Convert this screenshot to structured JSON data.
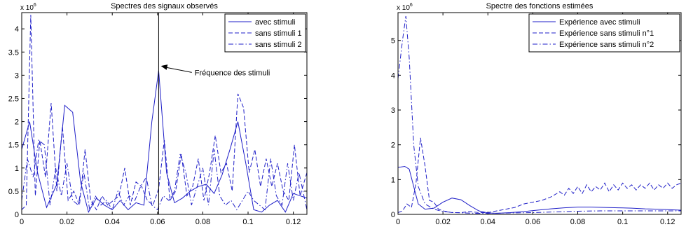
{
  "chart_data": [
    {
      "type": "line",
      "title": "Spectres des signaux observés",
      "xlabel": "",
      "ylabel": "",
      "y_multiplier_label": {
        "base": "x 10",
        "exponent": "6"
      },
      "xlim": [
        0,
        0.126
      ],
      "ylim": [
        0,
        4.35
      ],
      "x_ticks": [
        0,
        0.02,
        0.04,
        0.06,
        0.08,
        0.1,
        0.12
      ],
      "x_tick_labels": [
        "0",
        "0.02",
        "0.04",
        "0.06",
        "0.08",
        "0.1",
        "0.12"
      ],
      "y_ticks": [
        0,
        0.5,
        1,
        1.5,
        2,
        2.5,
        3,
        3.5,
        4
      ],
      "y_tick_labels": [
        "0",
        "0.5",
        "1",
        "1.5",
        "2",
        "2.5",
        "3",
        "3.5",
        "4"
      ],
      "grid": false,
      "legend_position": "top-right",
      "color": "#1f1fc8",
      "vline": {
        "x": 0.0605,
        "color": "#000000"
      },
      "annotation": {
        "text": "Fréquence des stimuli",
        "arrow_to": [
          0.0615,
          3.2
        ],
        "text_at": [
          0.077,
          3.0
        ]
      },
      "series": [
        {
          "name": "avec stimuli",
          "style": "solid",
          "x": [
            0,
            0.0035,
            0.007,
            0.011,
            0.0155,
            0.019,
            0.0225,
            0.026,
            0.0295,
            0.033,
            0.0365,
            0.04,
            0.0435,
            0.047,
            0.0505,
            0.054,
            0.0575,
            0.0605,
            0.064,
            0.0675,
            0.071,
            0.0745,
            0.078,
            0.0815,
            0.085,
            0.0885,
            0.092,
            0.0955,
            0.099,
            0.1025,
            0.106,
            0.1095,
            0.113,
            0.1165,
            0.12,
            0.126
          ],
          "y": [
            1.4,
            2.0,
            0.9,
            0.15,
            0.65,
            2.35,
            2.2,
            0.7,
            0.05,
            0.35,
            0.2,
            0.1,
            0.3,
            0.1,
            0.25,
            0.2,
            2.0,
            3.1,
            0.9,
            0.25,
            0.35,
            0.5,
            0.6,
            0.65,
            0.45,
            0.85,
            1.4,
            2.0,
            1.1,
            0.1,
            0.05,
            0.2,
            0.3,
            0.05,
            0.45,
            0.35
          ]
        },
        {
          "name": "sans stimuli 1",
          "style": "dashed",
          "x": [
            0,
            0.002,
            0.004,
            0.006,
            0.008,
            0.0105,
            0.013,
            0.0155,
            0.018,
            0.0205,
            0.023,
            0.0255,
            0.028,
            0.0305,
            0.033,
            0.0355,
            0.038,
            0.0405,
            0.043,
            0.0455,
            0.048,
            0.0505,
            0.053,
            0.0555,
            0.058,
            0.0605,
            0.063,
            0.0655,
            0.068,
            0.0705,
            0.073,
            0.0755,
            0.078,
            0.0805,
            0.083,
            0.0855,
            0.088,
            0.0905,
            0.093,
            0.0955,
            0.098,
            0.1005,
            0.103,
            0.1055,
            0.108,
            0.1105,
            0.113,
            0.1155,
            0.118,
            0.1205,
            0.123,
            0.126
          ],
          "y": [
            0.1,
            0.2,
            4.3,
            0.4,
            1.6,
            0.8,
            2.4,
            0.5,
            1.9,
            0.3,
            0.5,
            0.2,
            1.4,
            0.3,
            0.1,
            0.4,
            0.2,
            0.3,
            0.4,
            1.0,
            0.2,
            0.7,
            0.6,
            0.3,
            0.2,
            0.55,
            1.6,
            0.3,
            0.5,
            1.3,
            0.4,
            0.6,
            1.2,
            0.3,
            0.9,
            1.7,
            0.9,
            1.1,
            0.5,
            2.6,
            2.3,
            0.9,
            1.4,
            0.6,
            1.2,
            0.6,
            1.1,
            0.5,
            0.3,
            1.5,
            0.4,
            0.9
          ]
        },
        {
          "name": "sans stimuli 2",
          "style": "dashdot",
          "x": [
            0,
            0.0025,
            0.005,
            0.0075,
            0.01,
            0.0125,
            0.015,
            0.0175,
            0.02,
            0.0225,
            0.025,
            0.0275,
            0.03,
            0.0325,
            0.035,
            0.0375,
            0.04,
            0.0425,
            0.045,
            0.0475,
            0.05,
            0.0525,
            0.055,
            0.0575,
            0.06,
            0.0625,
            0.065,
            0.0675,
            0.07,
            0.0725,
            0.075,
            0.0775,
            0.08,
            0.0825,
            0.085,
            0.0875,
            0.09,
            0.0925,
            0.095,
            0.0975,
            0.1,
            0.1025,
            0.105,
            0.1075,
            0.11,
            0.1125,
            0.115,
            0.1175,
            0.12,
            0.1225,
            0.126
          ],
          "y": [
            0.3,
            1.2,
            0.8,
            1.6,
            1.5,
            0.2,
            1.0,
            0.4,
            1.1,
            0.3,
            0.2,
            0.9,
            0.1,
            0.4,
            0.2,
            0.3,
            0.1,
            0.5,
            0.2,
            0.4,
            0.3,
            0.6,
            0.8,
            0.2,
            0.1,
            0.4,
            0.3,
            0.5,
            1.3,
            0.9,
            0.2,
            0.6,
            1.0,
            0.2,
            1.4,
            0.4,
            0.2,
            0.3,
            0.1,
            0.3,
            0.5,
            0.3,
            0.2,
            0.1,
            1.2,
            0.4,
            0.2,
            1.1,
            0.3,
            0.9,
            0.1
          ]
        }
      ]
    },
    {
      "type": "line",
      "title": "Spectre des fonctions estimées",
      "xlabel": "",
      "ylabel": "",
      "y_multiplier_label": {
        "base": "x 10",
        "exponent": "6"
      },
      "xlim": [
        0,
        0.126
      ],
      "ylim": [
        0,
        5.8
      ],
      "x_ticks": [
        0,
        0.02,
        0.04,
        0.06,
        0.08,
        0.1,
        0.12
      ],
      "x_tick_labels": [
        "0",
        "0.02",
        "0.04",
        "0.06",
        "0.08",
        "0.1",
        "0.12"
      ],
      "y_ticks": [
        0,
        1,
        2,
        3,
        4,
        5
      ],
      "y_tick_labels": [
        "0",
        "1",
        "2",
        "3",
        "4",
        "5"
      ],
      "grid": false,
      "legend_position": "top-right",
      "color": "#1f1fc8",
      "series": [
        {
          "name": "Expérience avec stimuli",
          "style": "solid",
          "x": [
            0,
            0.003,
            0.005,
            0.007,
            0.009,
            0.012,
            0.016,
            0.02,
            0.024,
            0.028,
            0.032,
            0.036,
            0.04,
            0.044,
            0.05,
            0.056,
            0.062,
            0.068,
            0.074,
            0.08,
            0.086,
            0.092,
            0.098,
            0.104,
            0.11,
            0.116,
            0.122,
            0.126
          ],
          "y": [
            1.35,
            1.38,
            1.3,
            0.8,
            0.3,
            0.15,
            0.18,
            0.35,
            0.47,
            0.42,
            0.25,
            0.1,
            0.04,
            0.03,
            0.05,
            0.08,
            0.12,
            0.16,
            0.19,
            0.21,
            0.21,
            0.2,
            0.19,
            0.18,
            0.16,
            0.15,
            0.13,
            0.12
          ]
        },
        {
          "name": "Expérience sans stimuli n°1",
          "style": "dashed",
          "x": [
            0,
            0.002,
            0.004,
            0.006,
            0.008,
            0.01,
            0.012,
            0.014,
            0.016,
            0.018,
            0.02,
            0.024,
            0.028,
            0.032,
            0.036,
            0.04,
            0.044,
            0.048,
            0.052,
            0.056,
            0.06,
            0.064,
            0.068,
            0.072,
            0.074,
            0.076,
            0.078,
            0.08,
            0.082,
            0.084,
            0.086,
            0.088,
            0.09,
            0.092,
            0.094,
            0.096,
            0.098,
            0.1,
            0.102,
            0.104,
            0.106,
            0.108,
            0.11,
            0.112,
            0.114,
            0.116,
            0.118,
            0.12,
            0.122,
            0.124,
            0.126
          ],
          "y": [
            0.05,
            0.1,
            0.3,
            0.2,
            0.9,
            2.2,
            1.4,
            0.4,
            0.35,
            0.15,
            0.1,
            0.05,
            0.05,
            0.08,
            0.05,
            0.05,
            0.1,
            0.15,
            0.2,
            0.3,
            0.35,
            0.4,
            0.5,
            0.65,
            0.55,
            0.75,
            0.6,
            0.8,
            0.6,
            0.85,
            0.65,
            0.8,
            0.7,
            0.9,
            0.65,
            0.85,
            0.7,
            0.9,
            0.75,
            0.85,
            0.7,
            0.85,
            0.75,
            0.9,
            0.7,
            0.85,
            0.75,
            0.9,
            0.75,
            0.85,
            0.9
          ]
        },
        {
          "name": "Expérience sans stimuli n°2",
          "style": "dashdot",
          "x": [
            0,
            0.002,
            0.0035,
            0.005,
            0.007,
            0.009,
            0.012,
            0.016,
            0.02,
            0.025,
            0.03,
            0.035,
            0.04,
            0.05,
            0.06,
            0.07,
            0.08,
            0.09,
            0.1,
            0.11,
            0.12,
            0.126
          ],
          "y": [
            3.9,
            5.0,
            5.7,
            4.5,
            2.0,
            0.8,
            0.3,
            0.15,
            0.08,
            0.05,
            0.04,
            0.03,
            0.03,
            0.04,
            0.05,
            0.07,
            0.09,
            0.1,
            0.1,
            0.1,
            0.1,
            0.1
          ]
        }
      ]
    }
  ]
}
